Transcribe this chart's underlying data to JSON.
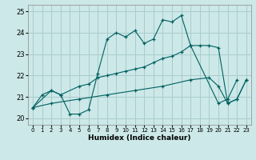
{
  "title": "",
  "xlabel": "Humidex (Indice chaleur)",
  "xlim": [
    -0.5,
    23.5
  ],
  "ylim": [
    19.7,
    25.3
  ],
  "xticks": [
    0,
    1,
    2,
    3,
    4,
    5,
    6,
    7,
    8,
    9,
    10,
    11,
    12,
    13,
    14,
    15,
    16,
    17,
    18,
    19,
    20,
    21,
    22,
    23
  ],
  "yticks": [
    20,
    21,
    22,
    23,
    24,
    25
  ],
  "background_color": "#cce8e8",
  "grid_color": "#aacccc",
  "line_color": "#006060",
  "s1_x": [
    0,
    1,
    2,
    3,
    4,
    5,
    6,
    7,
    8,
    9,
    10,
    11,
    12,
    13,
    14,
    15,
    16,
    17,
    20,
    21,
    22
  ],
  "s1_y": [
    20.5,
    21.1,
    21.3,
    21.1,
    20.2,
    20.2,
    20.4,
    22.1,
    23.7,
    24.0,
    23.8,
    24.1,
    23.5,
    23.7,
    24.6,
    24.5,
    24.8,
    23.4,
    20.7,
    20.9,
    21.8
  ],
  "s2_x": [
    0,
    2,
    3,
    5,
    6,
    7,
    8,
    9,
    10,
    11,
    12,
    13,
    14,
    15,
    16,
    17,
    18,
    19,
    20,
    21,
    22,
    23
  ],
  "s2_y": [
    20.5,
    21.3,
    21.1,
    21.5,
    21.6,
    21.9,
    22.0,
    22.1,
    22.2,
    22.3,
    22.4,
    22.6,
    22.8,
    22.9,
    23.1,
    23.4,
    23.4,
    23.4,
    23.3,
    20.7,
    20.9,
    21.8
  ],
  "s3_x": [
    0,
    2,
    5,
    8,
    11,
    14,
    17,
    19,
    20,
    21,
    22,
    23
  ],
  "s3_y": [
    20.5,
    20.7,
    20.9,
    21.1,
    21.3,
    21.5,
    21.8,
    21.9,
    21.5,
    20.7,
    20.9,
    21.8
  ]
}
